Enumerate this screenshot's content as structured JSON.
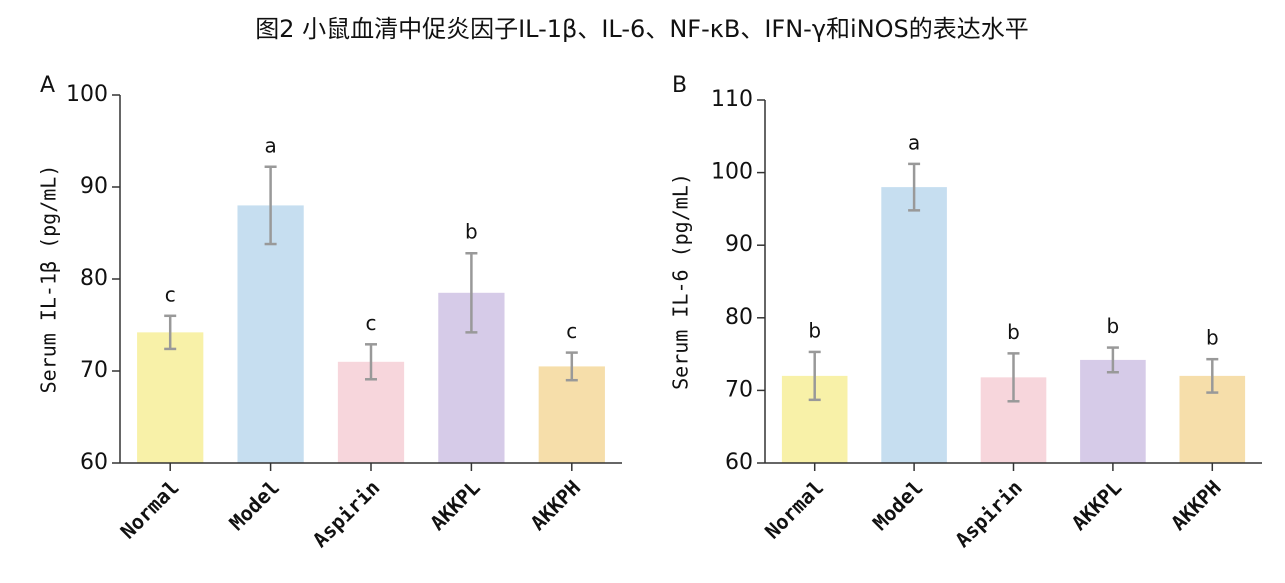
{
  "title": "图2 小鼠血清中促炎因子IL-1β、IL-6、NF-κB、IFN-γ和iNOS的表达水平",
  "chart_data": [
    {
      "type": "bar",
      "panel_label": "A",
      "y_label": "Serum IL-1β (pg/mL)",
      "categories": [
        "Normal",
        "Model",
        "Aspirin",
        "AKKPL",
        "AKKPH"
      ],
      "values": [
        74.2,
        88,
        71,
        78.5,
        70.5
      ],
      "errors": [
        1.8,
        4.2,
        1.9,
        4.3,
        1.5
      ],
      "annotations": [
        "c",
        "a",
        "c",
        "b",
        "c"
      ],
      "colors": [
        "#f8f1a8",
        "#c6def0",
        "#f7d6dc",
        "#d6cbe8",
        "#f6deaa"
      ],
      "ylim": [
        60,
        100
      ],
      "yticks": [
        60,
        70,
        80,
        90,
        100
      ]
    },
    {
      "type": "bar",
      "panel_label": "B",
      "y_label": "Serum IL-6 (pg/mL)",
      "categories": [
        "Normal",
        "Model",
        "Aspirin",
        "AKKPL",
        "AKKPH"
      ],
      "values": [
        72,
        98,
        71.8,
        74.2,
        72
      ],
      "errors": [
        3.3,
        3.2,
        3.3,
        1.7,
        2.3
      ],
      "annotations": [
        "b",
        "a",
        "b",
        "b",
        "b"
      ],
      "colors": [
        "#f8f1a8",
        "#c6def0",
        "#f7d6dc",
        "#d6cbe8",
        "#f6deaa"
      ],
      "ylim": [
        60,
        110
      ],
      "yticks": [
        60,
        70,
        80,
        90,
        100,
        110
      ]
    }
  ]
}
